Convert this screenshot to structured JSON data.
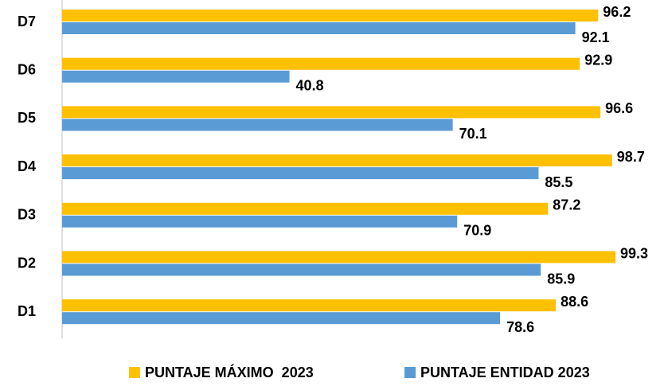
{
  "chart_data": {
    "type": "bar",
    "orientation": "horizontal",
    "categories": [
      "D7",
      "D6",
      "D5",
      "D4",
      "D3",
      "D2",
      "D1"
    ],
    "series": [
      {
        "name": "PUNTAJE MÁXIMO  2023",
        "color": "#FFC000",
        "values": [
          96.2,
          92.9,
          96.6,
          98.7,
          87.2,
          99.3,
          88.6
        ]
      },
      {
        "name": "PUNTAJE ENTIDAD 2023",
        "color": "#5B9BD5",
        "values": [
          92.1,
          40.8,
          70.1,
          85.5,
          70.9,
          85.9,
          78.6
        ]
      }
    ],
    "legend": "bottom"
  }
}
